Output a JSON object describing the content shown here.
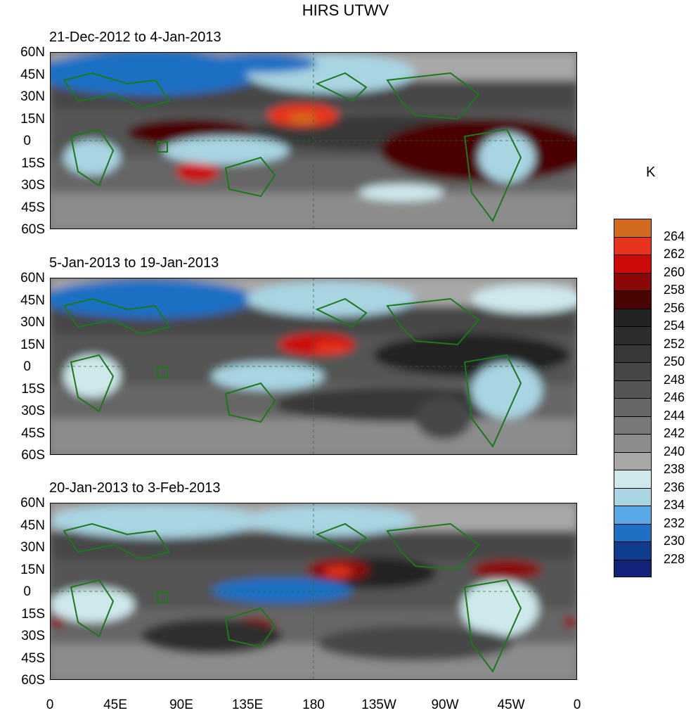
{
  "title": "HIRS UTWV",
  "unit_label": "K",
  "panels": [
    {
      "subtitle": "21-Dec-2012 to 4-Jan-2013"
    },
    {
      "subtitle": "5-Jan-2013 to 19-Jan-2013"
    },
    {
      "subtitle": "20-Jan-2013 to 3-Feb-2013"
    }
  ],
  "lat_labels": [
    "60N",
    "45N",
    "30N",
    "15N",
    "0",
    "15S",
    "30S",
    "45S",
    "60S"
  ],
  "lon_labels": [
    "0",
    "45E",
    "90E",
    "135E",
    "180",
    "135W",
    "90W",
    "45W",
    "0"
  ],
  "colorbar": {
    "labels": [
      "264",
      "262",
      "260",
      "258",
      "256",
      "254",
      "252",
      "250",
      "248",
      "246",
      "244",
      "242",
      "240",
      "238",
      "236",
      "234",
      "232",
      "230",
      "228"
    ],
    "colors": [
      "#d1691f",
      "#e8341c",
      "#cc0a0a",
      "#8a0808",
      "#4a0404",
      "#222222",
      "#2d2d2d",
      "#383838",
      "#464646",
      "#555555",
      "#666666",
      "#787878",
      "#8c8c8c",
      "#a8a8a8",
      "#cfe8ec",
      "#a9d4e2",
      "#5aa8e6",
      "#1f6fc4",
      "#0d3d8c",
      "#14237a"
    ]
  },
  "land_color": "#1a7a1a"
}
